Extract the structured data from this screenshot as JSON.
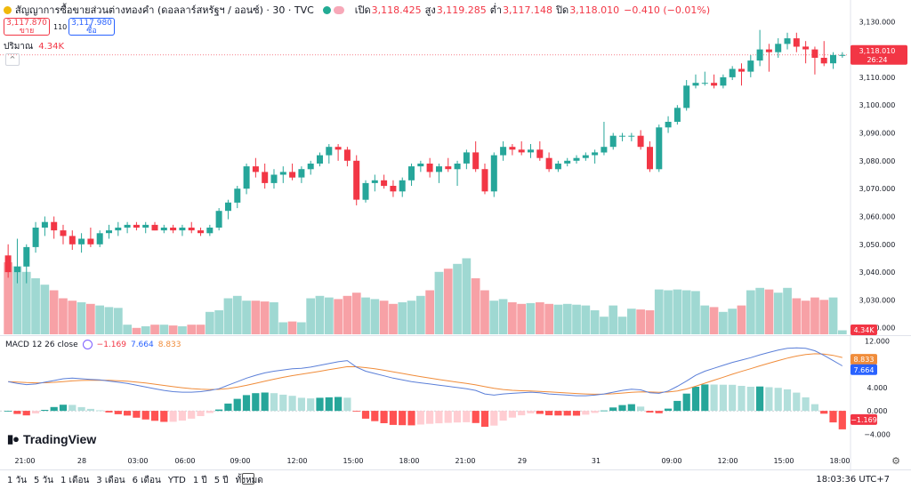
{
  "header": {
    "symbol_title": "สัญญาการซื้อขายส่วนต่างทองคำ (ดอลลาร์สหรัฐฯ / ออนซ์) · 30 · TVC",
    "open_label": "เปิด",
    "open_value": "3,118.425",
    "high_label": "สูง",
    "high_value": "3,119.285",
    "low_label": "ต่ำ",
    "low_value": "3,117.148",
    "close_label": "ปิด",
    "close_value": "3,118.010",
    "change": "−0.410 (−0.01%)"
  },
  "quote": {
    "sell_price": "3,117.870",
    "sell_label": "ขาย",
    "spread": "110",
    "buy_price": "3,117.980",
    "buy_label": "ซื้อ"
  },
  "volume_legend": {
    "label": "ปริมาณ",
    "value": "4.34K"
  },
  "macd_legend": {
    "label": "MACD 12 26 close",
    "hist": "−1.169",
    "macd": "7.664",
    "signal": "8.833"
  },
  "logo": {
    "text": "TradingView"
  },
  "range_buttons": [
    "1 วัน",
    "5 วัน",
    "1 เดือน",
    "3 เดือน",
    "6 เดือน",
    "YTD",
    "1 ปี",
    "5 ปี",
    "ทั้งหมด"
  ],
  "clock": "18:03:36 UTC+7",
  "colors": {
    "up": "#26a69a",
    "down": "#f23645",
    "vol_up": "#9fd8d2",
    "vol_down": "#f7a1a6",
    "macd_line": "#5b7fd8",
    "signal_line": "#f08c3a"
  },
  "chart_data": {
    "type": "candlestick",
    "price_axis": {
      "ylim": [
        3018,
        3132
      ],
      "ticks": [
        "3,130.000",
        "3,120.000",
        "3,110.000",
        "3,100.000",
        "3,090.000",
        "3,080.000",
        "3,070.000",
        "3,060.000",
        "3,050.000",
        "3,040.000",
        "3,030.000",
        "3,020.000"
      ]
    },
    "last_price": {
      "value": "3,118.010",
      "countdown": "26:24"
    },
    "volume_label": "4.34K",
    "macd_axis": {
      "ylim": [
        -5,
        12.5
      ],
      "ticks": [
        "12.000",
        "4.000",
        "0.000",
        "−4.000"
      ]
    },
    "macd_labels": {
      "signal": "8.833",
      "macd": "7.664",
      "hist": "−1.169"
    },
    "time_labels": [
      "21:00",
      "28",
      "03:00",
      "06:00",
      "09:00",
      "12:00",
      "15:00",
      "18:00",
      "21:00",
      "29",
      "31",
      "09:00",
      "12:00",
      "15:00",
      "18:00"
    ],
    "candles": [
      [
        3046,
        3050,
        3038,
        3040
      ],
      [
        3040,
        3052,
        3036,
        3042
      ],
      [
        3042,
        3050,
        3036,
        3049
      ],
      [
        3049,
        3058,
        3047,
        3056
      ],
      [
        3056,
        3060,
        3053,
        3058
      ],
      [
        3058,
        3060,
        3052,
        3055
      ],
      [
        3055,
        3057,
        3050,
        3053
      ],
      [
        3053,
        3055,
        3048,
        3050
      ],
      [
        3050,
        3054,
        3047,
        3052
      ],
      [
        3052,
        3056,
        3049,
        3050
      ],
      [
        3050,
        3055,
        3049,
        3054
      ],
      [
        3054,
        3057,
        3052,
        3055
      ],
      [
        3055,
        3058,
        3053,
        3056
      ],
      [
        3056,
        3058,
        3054,
        3057
      ],
      [
        3057,
        3058,
        3055,
        3056
      ],
      [
        3056,
        3058,
        3054,
        3057
      ],
      [
        3057,
        3058,
        3055,
        3055
      ],
      [
        3055,
        3057,
        3054,
        3056
      ],
      [
        3056,
        3057,
        3054,
        3055
      ],
      [
        3055,
        3057,
        3053,
        3056
      ],
      [
        3056,
        3058,
        3054,
        3055
      ],
      [
        3055,
        3056,
        3053,
        3054
      ],
      [
        3054,
        3057,
        3053,
        3056
      ],
      [
        3056,
        3063,
        3055,
        3062
      ],
      [
        3062,
        3066,
        3059,
        3065
      ],
      [
        3065,
        3071,
        3063,
        3070
      ],
      [
        3070,
        3079,
        3068,
        3078
      ],
      [
        3078,
        3081,
        3074,
        3076
      ],
      [
        3076,
        3079,
        3070,
        3072
      ],
      [
        3072,
        3077,
        3070,
        3075
      ],
      [
        3075,
        3078,
        3072,
        3076
      ],
      [
        3076,
        3079,
        3073,
        3074
      ],
      [
        3074,
        3078,
        3072,
        3077
      ],
      [
        3077,
        3080,
        3075,
        3079
      ],
      [
        3079,
        3083,
        3078,
        3082
      ],
      [
        3082,
        3086,
        3079,
        3085
      ],
      [
        3085,
        3086,
        3080,
        3084
      ],
      [
        3084,
        3085,
        3078,
        3080
      ],
      [
        3080,
        3082,
        3064,
        3066
      ],
      [
        3066,
        3073,
        3065,
        3072
      ],
      [
        3072,
        3075,
        3069,
        3073
      ],
      [
        3073,
        3075,
        3070,
        3071
      ],
      [
        3071,
        3073,
        3067,
        3069
      ],
      [
        3069,
        3074,
        3067,
        3073
      ],
      [
        3073,
        3079,
        3071,
        3078
      ],
      [
        3078,
        3080,
        3076,
        3079
      ],
      [
        3079,
        3081,
        3074,
        3076
      ],
      [
        3076,
        3079,
        3072,
        3078
      ],
      [
        3078,
        3081,
        3076,
        3077
      ],
      [
        3077,
        3080,
        3071,
        3079
      ],
      [
        3079,
        3084,
        3077,
        3083
      ],
      [
        3083,
        3087,
        3076,
        3077
      ],
      [
        3077,
        3079,
        3068,
        3069
      ],
      [
        3069,
        3083,
        3067,
        3082
      ],
      [
        3082,
        3087,
        3080,
        3085
      ],
      [
        3085,
        3086,
        3082,
        3084
      ],
      [
        3084,
        3087,
        3082,
        3083
      ],
      [
        3083,
        3086,
        3081,
        3084
      ],
      [
        3084,
        3087,
        3080,
        3081
      ],
      [
        3081,
        3083,
        3076,
        3077
      ],
      [
        3077,
        3080,
        3076,
        3079
      ],
      [
        3079,
        3081,
        3078,
        3080
      ],
      [
        3080,
        3082,
        3079,
        3081
      ],
      [
        3081,
        3083,
        3080,
        3082
      ],
      [
        3082,
        3084,
        3079,
        3083
      ],
      [
        3083,
        3094,
        3082,
        3085
      ],
      [
        3085,
        3090,
        3084,
        3089
      ],
      [
        3089,
        3090,
        3087,
        3089
      ],
      [
        3089,
        3090,
        3087,
        3089
      ],
      [
        3089,
        3091,
        3084,
        3085
      ],
      [
        3085,
        3087,
        3076,
        3077
      ],
      [
        3077,
        3093,
        3076,
        3092
      ],
      [
        3092,
        3096,
        3090,
        3094
      ],
      [
        3094,
        3100,
        3093,
        3099
      ],
      [
        3099,
        3109,
        3098,
        3107
      ],
      [
        3107,
        3111,
        3106,
        3108
      ],
      [
        3108,
        3112,
        3107,
        3108
      ],
      [
        3108,
        3111,
        3106,
        3107
      ],
      [
        3107,
        3111,
        3106,
        3110
      ],
      [
        3110,
        3114,
        3109,
        3113
      ],
      [
        3113,
        3115,
        3107,
        3112
      ],
      [
        3112,
        3118,
        3110,
        3116
      ],
      [
        3116,
        3127,
        3114,
        3120
      ],
      [
        3120,
        3122,
        3112,
        3119
      ],
      [
        3119,
        3124,
        3117,
        3122
      ],
      [
        3122,
        3126,
        3120,
        3124
      ],
      [
        3124,
        3126,
        3119,
        3121
      ],
      [
        3121,
        3123,
        3115,
        3120
      ],
      [
        3120,
        3121,
        3111,
        3117
      ],
      [
        3117,
        3123,
        3114,
        3115
      ],
      [
        3115,
        3119,
        3113,
        3118
      ],
      [
        3118,
        3119,
        3117,
        3118
      ]
    ],
    "volume_ratio": [
      0.9,
      0.85,
      0.78,
      0.7,
      0.62,
      0.55,
      0.45,
      0.42,
      0.4,
      0.38,
      0.36,
      0.34,
      0.33,
      0.12,
      0.08,
      0.1,
      0.12,
      0.12,
      0.11,
      0.1,
      0.12,
      0.12,
      0.28,
      0.3,
      0.45,
      0.48,
      0.42,
      0.42,
      0.41,
      0.4,
      0.15,
      0.16,
      0.15,
      0.45,
      0.48,
      0.46,
      0.44,
      0.48,
      0.52,
      0.46,
      0.44,
      0.42,
      0.38,
      0.4,
      0.42,
      0.48,
      0.55,
      0.78,
      0.82,
      0.88,
      0.95,
      0.7,
      0.55,
      0.42,
      0.44,
      0.4,
      0.38,
      0.39,
      0.4,
      0.38,
      0.37,
      0.38,
      0.37,
      0.36,
      0.3,
      0.22,
      0.36,
      0.22,
      0.32,
      0.31,
      0.3,
      0.56,
      0.55,
      0.56,
      0.55,
      0.54,
      0.36,
      0.34,
      0.28,
      0.32,
      0.36,
      0.55,
      0.58,
      0.56,
      0.52,
      0.58,
      0.45,
      0.42,
      0.46,
      0.43,
      0.46,
      0.05
    ],
    "macd": [
      5.0,
      4.7,
      4.5,
      4.6,
      4.9,
      5.2,
      5.5,
      5.6,
      5.5,
      5.4,
      5.3,
      5.1,
      4.9,
      4.7,
      4.4,
      4.1,
      3.8,
      3.5,
      3.3,
      3.2,
      3.2,
      3.3,
      3.5,
      3.8,
      4.4,
      5.0,
      5.6,
      6.1,
      6.5,
      6.8,
      7.0,
      7.2,
      7.3,
      7.5,
      7.8,
      8.1,
      8.4,
      8.6,
      7.5,
      6.8,
      6.4,
      6.0,
      5.6,
      5.3,
      5.0,
      4.8,
      4.6,
      4.4,
      4.2,
      4.0,
      3.8,
      3.5,
      2.9,
      2.7,
      2.9,
      3.0,
      3.1,
      3.2,
      3.1,
      2.9,
      2.8,
      2.7,
      2.6,
      2.6,
      2.7,
      2.9,
      3.2,
      3.5,
      3.7,
      3.6,
      3.1,
      3.0,
      3.4,
      4.2,
      5.1,
      6.1,
      6.8,
      7.3,
      7.8,
      8.3,
      8.7,
      9.1,
      9.6,
      10.0,
      10.4,
      10.7,
      10.8,
      10.7,
      10.3,
      9.5,
      8.6,
      7.7
    ]
  }
}
